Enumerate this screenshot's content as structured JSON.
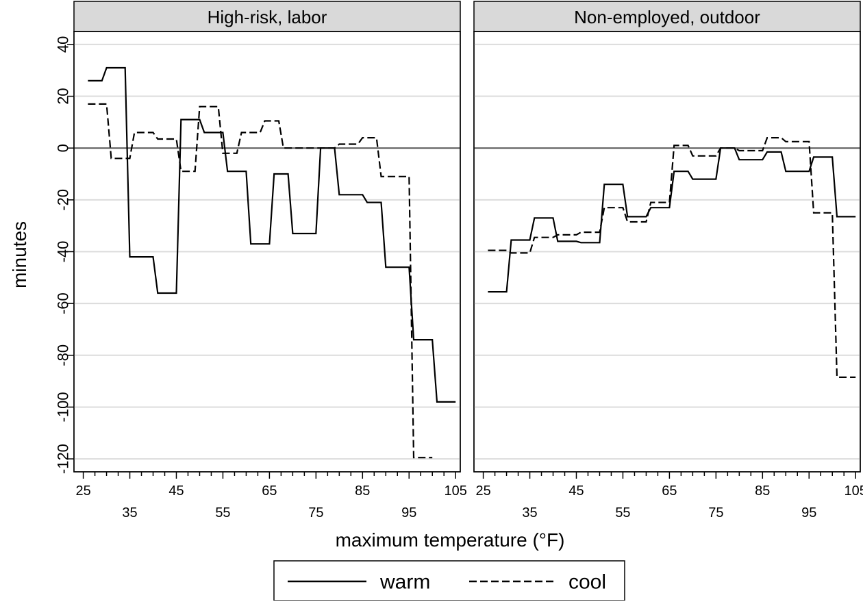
{
  "chart_data": {
    "type": "line",
    "ylabel": "minutes",
    "xlabel": "maximum temperature (°F)",
    "ylim": [
      -125,
      45
    ],
    "xlim": [
      23,
      106
    ],
    "yticks": [
      40,
      20,
      0,
      -20,
      -40,
      -60,
      -80,
      -100,
      -120
    ],
    "xticks_major": [
      25,
      45,
      65,
      85,
      105
    ],
    "xticks_minor": [
      35,
      55,
      75,
      95
    ],
    "grid": true,
    "legend": {
      "position": "bottom-center",
      "entries": [
        {
          "label": "warm",
          "style": "solid"
        },
        {
          "label": "cool",
          "style": "dashed"
        }
      ]
    },
    "panels": [
      {
        "title": "High-risk, labor",
        "series": [
          {
            "name": "warm",
            "style": "solid",
            "points": [
              [
                26,
                26
              ],
              [
                29,
                26
              ],
              [
                30,
                31
              ],
              [
                34,
                31
              ],
              [
                35,
                -42
              ],
              [
                40,
                -42
              ],
              [
                41,
                -56
              ],
              [
                45,
                -56
              ],
              [
                46,
                11
              ],
              [
                50,
                11
              ],
              [
                51,
                6
              ],
              [
                55,
                6
              ],
              [
                56,
                -9
              ],
              [
                60,
                -9
              ],
              [
                61,
                -37
              ],
              [
                65,
                -37
              ],
              [
                66,
                -10
              ],
              [
                69,
                -10
              ],
              [
                70,
                -33
              ],
              [
                75,
                -33
              ],
              [
                76,
                0
              ],
              [
                79,
                0
              ],
              [
                80,
                -18
              ],
              [
                85,
                -18
              ],
              [
                86,
                -21
              ],
              [
                89,
                -21
              ],
              [
                90,
                -46
              ],
              [
                95,
                -46
              ],
              [
                96,
                -74
              ],
              [
                100,
                -74
              ],
              [
                101,
                -98
              ],
              [
                105,
                -98
              ]
            ]
          },
          {
            "name": "cool",
            "style": "dashed",
            "points": [
              [
                26,
                17
              ],
              [
                30,
                17
              ],
              [
                31,
                -4
              ],
              [
                35,
                -4
              ],
              [
                36,
                6
              ],
              [
                40,
                6
              ],
              [
                41,
                3.5
              ],
              [
                45,
                3.5
              ],
              [
                46,
                -9
              ],
              [
                49,
                -9
              ],
              [
                50,
                16
              ],
              [
                54,
                16
              ],
              [
                55,
                -2
              ],
              [
                58,
                -2
              ],
              [
                59,
                6
              ],
              [
                63,
                6
              ],
              [
                64,
                10.5
              ],
              [
                67,
                10.5
              ],
              [
                68,
                0
              ],
              [
                75,
                0
              ],
              [
                76,
                0
              ],
              [
                79,
                0
              ],
              [
                80,
                1.5
              ],
              [
                84,
                1.5
              ],
              [
                85,
                4
              ],
              [
                88,
                4
              ],
              [
                89,
                -11
              ],
              [
                95,
                -11
              ],
              [
                96,
                -119.5
              ],
              [
                100,
                -119.5
              ]
            ]
          }
        ]
      },
      {
        "title": "Non-employed, outdoor",
        "series": [
          {
            "name": "warm",
            "style": "solid",
            "points": [
              [
                26,
                -55.5
              ],
              [
                30,
                -55.5
              ],
              [
                31,
                -35.5
              ],
              [
                35,
                -35.5
              ],
              [
                36,
                -27
              ],
              [
                40,
                -27
              ],
              [
                41,
                -36
              ],
              [
                45,
                -36
              ],
              [
                46,
                -36.5
              ],
              [
                50,
                -36.5
              ],
              [
                51,
                -14
              ],
              [
                55,
                -14
              ],
              [
                56,
                -26.5
              ],
              [
                60,
                -26.5
              ],
              [
                61,
                -23
              ],
              [
                65,
                -23
              ],
              [
                66,
                -9
              ],
              [
                69,
                -9
              ],
              [
                70,
                -12
              ],
              [
                75,
                -12
              ],
              [
                76,
                0
              ],
              [
                79,
                0
              ],
              [
                80,
                -4.5
              ],
              [
                85,
                -4.5
              ],
              [
                86,
                -1.5
              ],
              [
                89,
                -1.5
              ],
              [
                90,
                -9
              ],
              [
                95,
                -9
              ],
              [
                96,
                -3.5
              ],
              [
                100,
                -3.5
              ],
              [
                101,
                -26.5
              ],
              [
                105,
                -26.5
              ]
            ]
          },
          {
            "name": "cool",
            "style": "dashed",
            "points": [
              [
                26,
                -39.5
              ],
              [
                30,
                -39.5
              ],
              [
                31,
                -40.5
              ],
              [
                35,
                -40.5
              ],
              [
                36,
                -34.5
              ],
              [
                40,
                -34.5
              ],
              [
                41,
                -33.5
              ],
              [
                45,
                -33.5
              ],
              [
                46,
                -32.5
              ],
              [
                50,
                -32.5
              ],
              [
                51,
                -23
              ],
              [
                55,
                -23
              ],
              [
                56,
                -28.5
              ],
              [
                60,
                -28.5
              ],
              [
                61,
                -21
              ],
              [
                65,
                -21
              ],
              [
                66,
                1
              ],
              [
                69,
                1
              ],
              [
                70,
                -3
              ],
              [
                75,
                -3
              ],
              [
                76,
                0
              ],
              [
                79,
                0
              ],
              [
                80,
                -1
              ],
              [
                85,
                -1
              ],
              [
                86,
                4
              ],
              [
                89,
                4
              ],
              [
                90,
                2.5
              ],
              [
                95,
                2.5
              ],
              [
                96,
                -25
              ],
              [
                100,
                -25
              ],
              [
                101,
                -88.5
              ],
              [
                105,
                -88.5
              ]
            ]
          }
        ]
      }
    ]
  }
}
